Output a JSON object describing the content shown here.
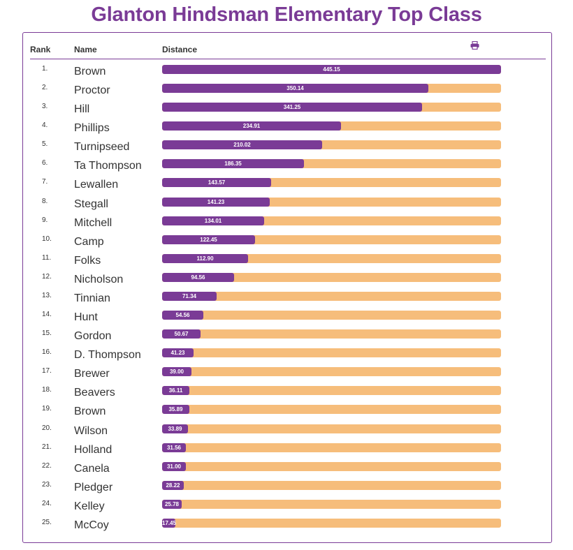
{
  "title": "Glanton Hindsman Elementary Top Class",
  "headers": {
    "rank": "Rank",
    "name": "Name",
    "distance": "Distance"
  },
  "icons": {
    "print": "print-icon"
  },
  "colors": {
    "accent": "#7a3b96",
    "track": "#f6bd7b"
  },
  "max_distance": 445.15,
  "rows": [
    {
      "rank": "1.",
      "name": "Brown",
      "distance": "445.15"
    },
    {
      "rank": "2.",
      "name": "Proctor",
      "distance": "350.14"
    },
    {
      "rank": "3.",
      "name": "Hill",
      "distance": "341.25"
    },
    {
      "rank": "4.",
      "name": "Phillips",
      "distance": "234.91"
    },
    {
      "rank": "5.",
      "name": "Turnipseed",
      "distance": "210.02"
    },
    {
      "rank": "6.",
      "name": "Ta Thompson",
      "distance": "186.35"
    },
    {
      "rank": "7.",
      "name": "Lewallen",
      "distance": "143.57"
    },
    {
      "rank": "8.",
      "name": "Stegall",
      "distance": "141.23"
    },
    {
      "rank": "9.",
      "name": "Mitchell",
      "distance": "134.01"
    },
    {
      "rank": "10.",
      "name": "Camp",
      "distance": "122.45"
    },
    {
      "rank": "11.",
      "name": "Folks",
      "distance": "112.90"
    },
    {
      "rank": "12.",
      "name": "Nicholson",
      "distance": "94.56"
    },
    {
      "rank": "13.",
      "name": "Tinnian",
      "distance": "71.34"
    },
    {
      "rank": "14.",
      "name": "Hunt",
      "distance": "54.56"
    },
    {
      "rank": "15.",
      "name": "Gordon",
      "distance": "50.67"
    },
    {
      "rank": "16.",
      "name": "D. Thompson",
      "distance": "41.23"
    },
    {
      "rank": "17.",
      "name": "Brewer",
      "distance": "39.00"
    },
    {
      "rank": "18.",
      "name": "Beavers",
      "distance": "36.11"
    },
    {
      "rank": "19.",
      "name": "Brown",
      "distance": "35.89"
    },
    {
      "rank": "20.",
      "name": "Wilson",
      "distance": "33.89"
    },
    {
      "rank": "21.",
      "name": "Holland",
      "distance": "31.56"
    },
    {
      "rank": "22.",
      "name": "Canela",
      "distance": "31.00"
    },
    {
      "rank": "23.",
      "name": "Pledger",
      "distance": "28.22"
    },
    {
      "rank": "24.",
      "name": "Kelley",
      "distance": "25.78"
    },
    {
      "rank": "25.",
      "name": "McCoy",
      "distance": "17.45"
    }
  ]
}
